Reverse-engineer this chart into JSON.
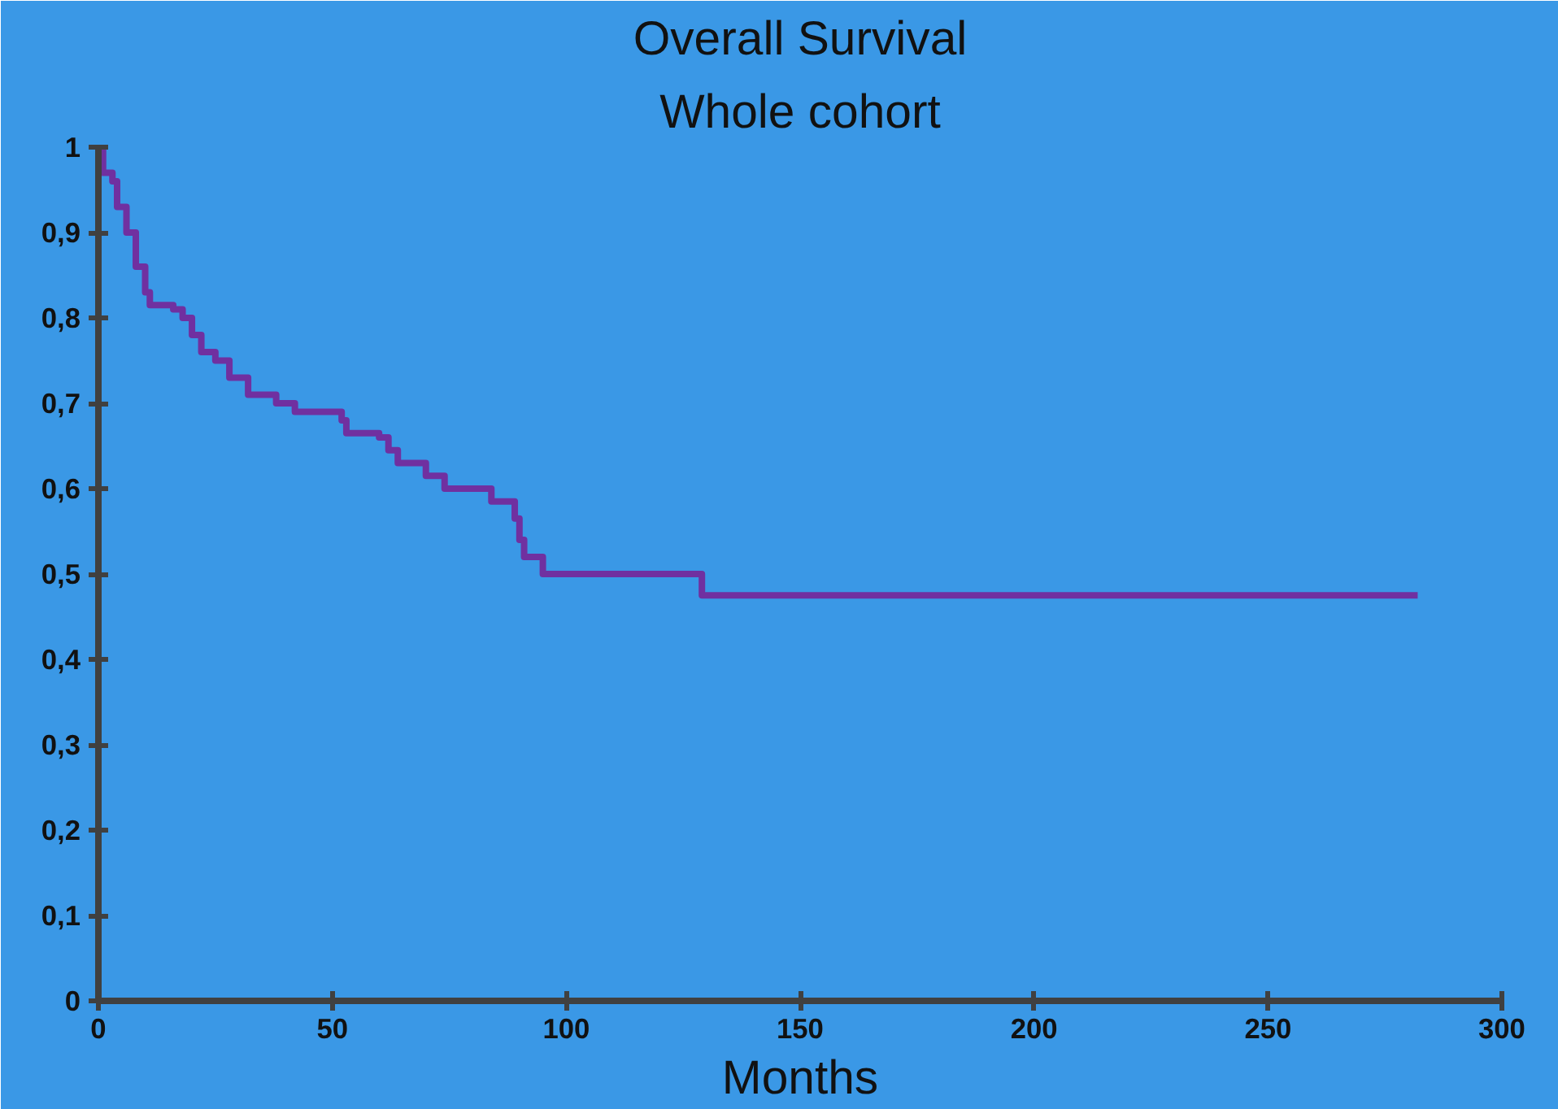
{
  "chart_data": {
    "type": "step",
    "title": "Overall Survival",
    "subtitle": "Whole cohort",
    "xlabel": "Months",
    "x": [
      0,
      1,
      3,
      4,
      6,
      8,
      10,
      11,
      16,
      18,
      20,
      22,
      25,
      28,
      32,
      38,
      42,
      52,
      53,
      60,
      62,
      64,
      70,
      74,
      84,
      89,
      90,
      91,
      95,
      129,
      282
    ],
    "series": [
      {
        "color": "#7030a0",
        "values": [
          1.0,
          0.97,
          0.96,
          0.93,
          0.9,
          0.86,
          0.83,
          0.815,
          0.81,
          0.8,
          0.78,
          0.76,
          0.75,
          0.73,
          0.71,
          0.7,
          0.69,
          0.68,
          0.665,
          0.66,
          0.645,
          0.63,
          0.615,
          0.6,
          0.585,
          0.565,
          0.54,
          0.52,
          0.5,
          0.475,
          0.475
        ]
      }
    ],
    "xlim": [
      0,
      300
    ],
    "xticks": [
      0,
      50,
      100,
      150,
      200,
      250,
      300
    ],
    "ylim": [
      0,
      1
    ],
    "yticks": [
      0,
      {
        "value": 0.1,
        "label": "0,1"
      },
      {
        "value": 0.2,
        "label": "0,2"
      },
      {
        "value": 0.3,
        "label": "0,3"
      },
      {
        "value": 0.4,
        "label": "0,4"
      },
      {
        "value": 0.5,
        "label": "0,5"
      },
      {
        "value": 0.6,
        "label": "0,6"
      },
      {
        "value": 0.7,
        "label": "0,7"
      },
      {
        "value": 0.8,
        "label": "0,8"
      },
      {
        "value": 0.9,
        "label": "0,9"
      },
      1
    ],
    "grid": false
  }
}
